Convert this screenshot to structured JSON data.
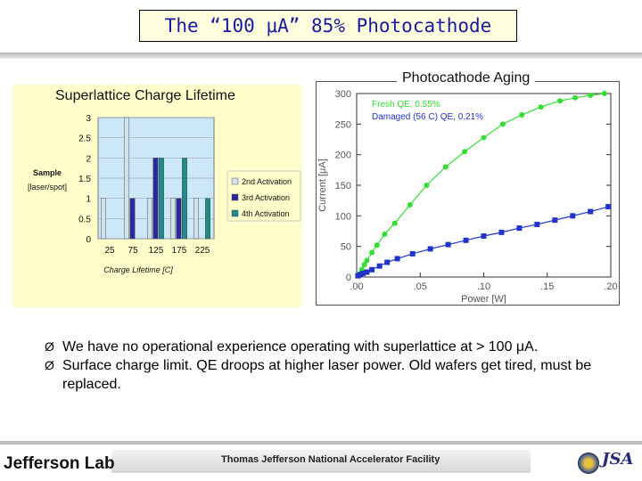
{
  "slide": {
    "title": "The “100 μA” 85% Photocathode",
    "bullets": [
      "We have no operational experience operating with superlattice at > 100 μA.",
      "Surface charge limit.  QE droops at higher laser power.  Old wafers get tired, must be replaced."
    ],
    "bullet_marker": "Ø"
  },
  "footer": {
    "lab_name": "Jefferson Lab",
    "facility": "Thomas Jefferson National Accelerator Facility",
    "partner_logo": "JSA"
  },
  "colors": {
    "title_text": "#1a1aa0",
    "title_bg": "#ffffe0",
    "left_panel_bg": "#ffffcc",
    "plot_bg": "#cce8f8",
    "series_2nd": "#cfe2ee",
    "series_3rd": "#2a2a9a",
    "series_4th": "#208a8a",
    "fresh": "#33dd33",
    "damaged": "#2233cc"
  },
  "chart_data": [
    {
      "type": "bar",
      "title": "Superlattice Charge Lifetime",
      "xlabel": "Charge Lifetime [C]",
      "ylabel": "Sample [laser/spot]",
      "ylim": [
        0,
        3
      ],
      "yticks": [
        "0",
        "0.5",
        "1",
        "1.5",
        "2",
        "2.5",
        "3"
      ],
      "categories": [
        "25",
        "75",
        "125",
        "175",
        "225"
      ],
      "legend_position": "right",
      "series": [
        {
          "name": "2nd Activation",
          "values": [
            1,
            3,
            1,
            1,
            1
          ]
        },
        {
          "name": "3rd Activation",
          "values": [
            0,
            1,
            2,
            1,
            0
          ]
        },
        {
          "name": "4th Activation",
          "values": [
            0,
            0,
            2,
            2,
            1
          ]
        }
      ]
    },
    {
      "type": "line",
      "title": "Photocathode Aging",
      "xlabel": "Power [W]",
      "ylabel": "Current [μA]",
      "xlim": [
        0,
        0.2
      ],
      "ylim": [
        0,
        300
      ],
      "xticks": [
        ".00",
        ".05",
        ".10",
        ".15",
        ".20"
      ],
      "yticks": [
        "0",
        "50",
        "100",
        "150",
        "200",
        "250",
        "300"
      ],
      "series": [
        {
          "name": "Fresh QE, 0.55%",
          "x": [
            0.002,
            0.004,
            0.006,
            0.008,
            0.012,
            0.016,
            0.022,
            0.03,
            0.042,
            0.055,
            0.07,
            0.085,
            0.1,
            0.115,
            0.13,
            0.145,
            0.16,
            0.172,
            0.184,
            0.195
          ],
          "y": [
            5,
            12,
            20,
            27,
            40,
            52,
            70,
            88,
            118,
            150,
            180,
            205,
            228,
            250,
            265,
            278,
            288,
            293,
            297,
            300
          ]
        },
        {
          "name": "Damaged (56 C) QE, 0.21%",
          "x": [
            0.001,
            0.003,
            0.005,
            0.008,
            0.012,
            0.018,
            0.024,
            0.032,
            0.044,
            0.058,
            0.072,
            0.086,
            0.1,
            0.114,
            0.128,
            0.142,
            0.156,
            0.17,
            0.184,
            0.198
          ],
          "y": [
            2,
            4,
            6,
            8,
            12,
            18,
            24,
            30,
            38,
            46,
            53,
            60,
            67,
            73,
            80,
            86,
            93,
            100,
            107,
            115
          ]
        }
      ]
    }
  ]
}
